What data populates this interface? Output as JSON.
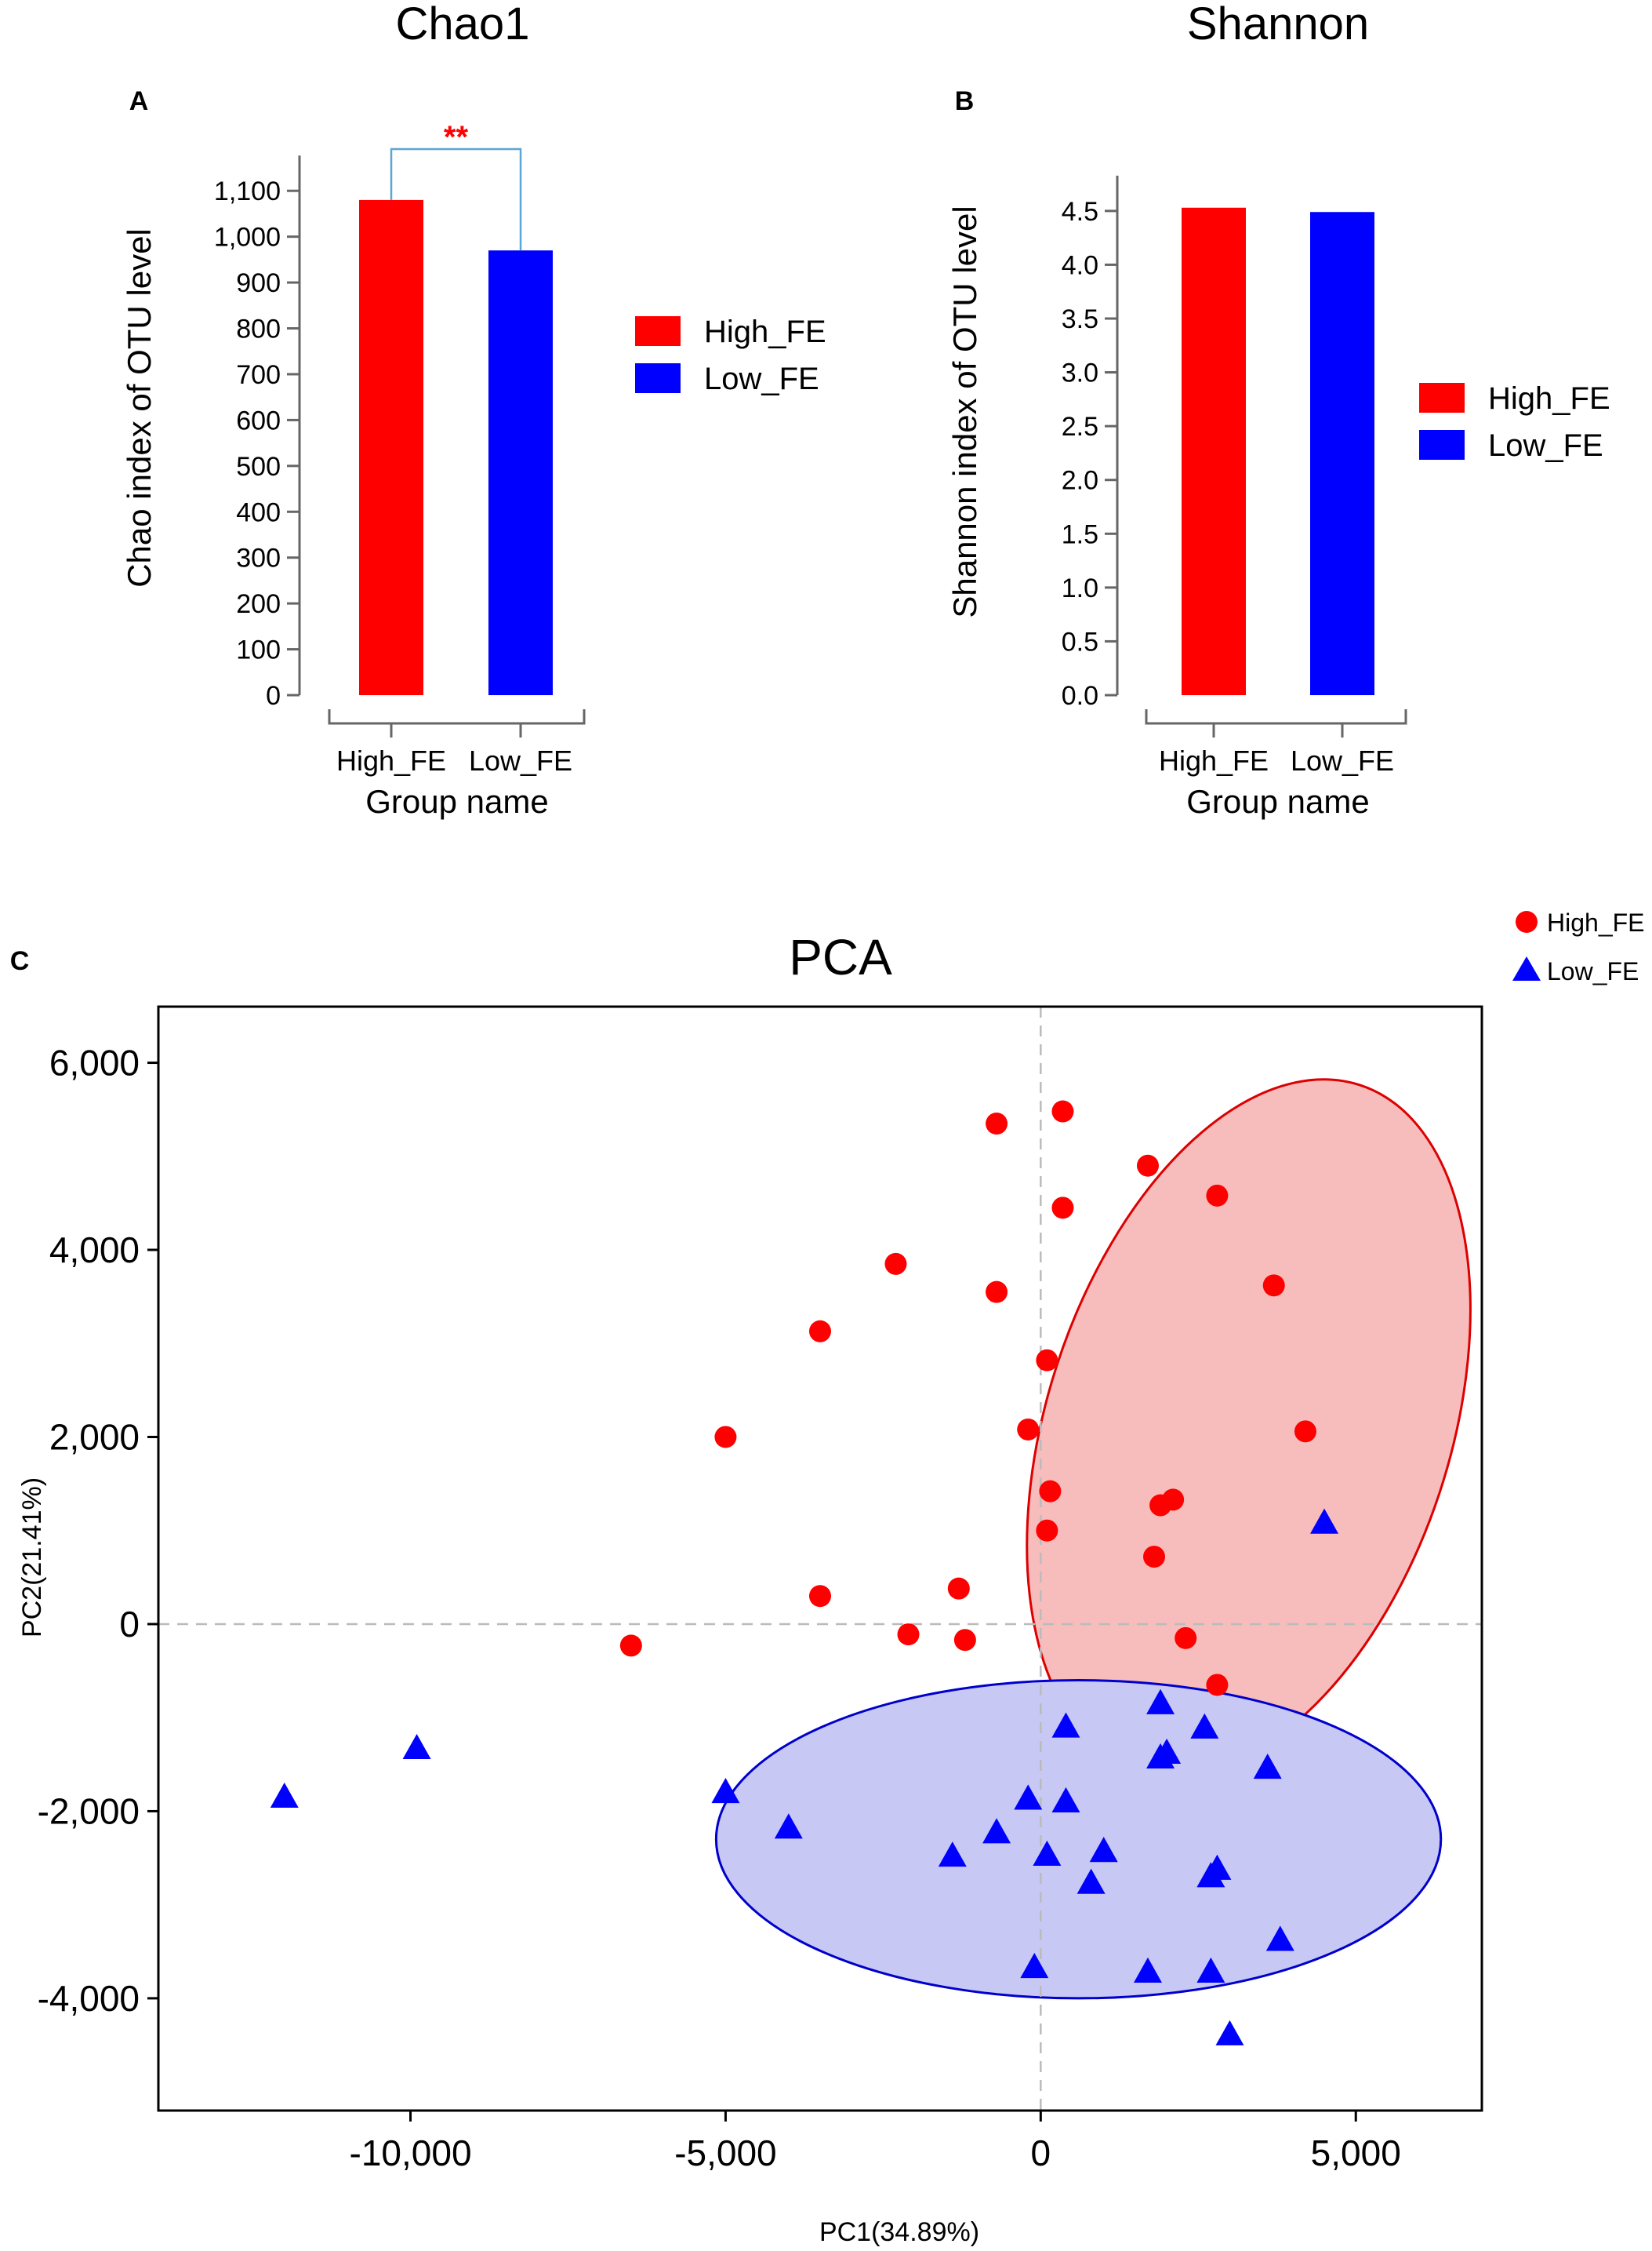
{
  "chart_data": [
    {
      "panel": "A",
      "type": "bar",
      "title": "Chao1",
      "xlabel": "Group name",
      "ylabel": "Chao index of OTU level",
      "categories": [
        "High_FE",
        "Low_FE"
      ],
      "values": [
        1080,
        970
      ],
      "colors": [
        "#ff0000",
        "#0000ff"
      ],
      "ylim": [
        0,
        1150
      ],
      "yticks": [
        0,
        100,
        200,
        300,
        400,
        500,
        600,
        700,
        800,
        900,
        1000,
        1100
      ],
      "ytick_labels": [
        "0",
        "100",
        "200",
        "300",
        "400",
        "500",
        "600",
        "700",
        "800",
        "900",
        "1,000",
        "1,100"
      ],
      "legend": [
        "High_FE",
        "Low_FE"
      ],
      "significance": {
        "label": "**",
        "between": [
          "High_FE",
          "Low_FE"
        ],
        "color": "#ff0000",
        "bracket_color": "#5aa6d6"
      }
    },
    {
      "panel": "B",
      "type": "bar",
      "title": "Shannon",
      "xlabel": "Group name",
      "ylabel": "Shannon index of OTU level",
      "categories": [
        "High_FE",
        "Low_FE"
      ],
      "values": [
        4.53,
        4.49
      ],
      "colors": [
        "#ff0000",
        "#0000ff"
      ],
      "ylim": [
        0,
        4.9
      ],
      "yticks": [
        0,
        0.5,
        1.0,
        1.5,
        2.0,
        2.5,
        3.0,
        3.5,
        4.0,
        4.5
      ],
      "ytick_labels": [
        "0.0",
        "0.5",
        "1.0",
        "1.5",
        "2.0",
        "2.5",
        "3.0",
        "3.5",
        "4.0",
        "4.5"
      ],
      "legend": [
        "High_FE",
        "Low_FE"
      ]
    },
    {
      "panel": "C",
      "type": "scatter",
      "title": "PCA",
      "xlabel": "PC1(34.89%)",
      "ylabel": "PC2(21.41%)",
      "xlim": [
        -14000,
        7000
      ],
      "ylim": [
        -5200,
        6600
      ],
      "xticks": [
        -10000,
        -5000,
        0,
        5000
      ],
      "xtick_labels": [
        "-10,000",
        "-5,000",
        "0",
        "5,000"
      ],
      "yticks": [
        -4000,
        -2000,
        0,
        2000,
        4000,
        6000
      ],
      "ytick_labels": [
        "-4,000",
        "-2,000",
        "0",
        "2,000",
        "4,000",
        "6,000"
      ],
      "series": [
        {
          "name": "High_FE",
          "marker": "circle",
          "color": "#ff0000",
          "ellipse": {
            "cx": 3300,
            "cy": 2100,
            "rx": 3200,
            "ry": 3850,
            "angle_deg": 18,
            "fill": "#f7bcbc",
            "stroke": "#dd0000"
          },
          "points": [
            [
              -700,
              5350
            ],
            [
              350,
              5480
            ],
            [
              1700,
              4900
            ],
            [
              2800,
              4580
            ],
            [
              350,
              4450
            ],
            [
              -2300,
              3850
            ],
            [
              -700,
              3550
            ],
            [
              3700,
              3620
            ],
            [
              -3500,
              3130
            ],
            [
              100,
              2820
            ],
            [
              -5000,
              2000
            ],
            [
              -200,
              2080
            ],
            [
              4200,
              2060
            ],
            [
              150,
              1420
            ],
            [
              2100,
              1330
            ],
            [
              1900,
              1270
            ],
            [
              100,
              1000
            ],
            [
              1800,
              720
            ],
            [
              -1300,
              380
            ],
            [
              -3500,
              300
            ],
            [
              -2100,
              -110
            ],
            [
              -1200,
              -170
            ],
            [
              2300,
              -150
            ],
            [
              2800,
              -650
            ],
            [
              -6500,
              -230
            ]
          ]
        },
        {
          "name": "Low_FE",
          "marker": "triangle",
          "color": "#0000ff",
          "ellipse": {
            "cx": 600,
            "cy": -2300,
            "rx": 5750,
            "ry": 1700,
            "angle_deg": 0,
            "fill": "#c8c8f4",
            "stroke": "#0000cc"
          },
          "points": [
            [
              -12000,
              -1850
            ],
            [
              -9900,
              -1330
            ],
            [
              -5000,
              -1800
            ],
            [
              -4000,
              -2180
            ],
            [
              -1400,
              -2480
            ],
            [
              -700,
              -2230
            ],
            [
              -200,
              -1870
            ],
            [
              100,
              -2470
            ],
            [
              400,
              -1900
            ],
            [
              400,
              -1100
            ],
            [
              800,
              -2770
            ],
            [
              1000,
              -2430
            ],
            [
              1900,
              -850
            ],
            [
              1900,
              -1430
            ],
            [
              2000,
              -1380
            ],
            [
              2600,
              -1110
            ],
            [
              2700,
              -2700
            ],
            [
              2800,
              -2620
            ],
            [
              3600,
              -1540
            ],
            [
              4500,
              1080
            ],
            [
              -100,
              -3670
            ],
            [
              1700,
              -3720
            ],
            [
              2700,
              -3720
            ],
            [
              3800,
              -3380
            ],
            [
              3000,
              -4390
            ]
          ]
        }
      ],
      "legend": [
        "High_FE",
        "Low_FE"
      ]
    }
  ],
  "panel_labels": {
    "a": "A",
    "b": "B",
    "c": "C"
  }
}
